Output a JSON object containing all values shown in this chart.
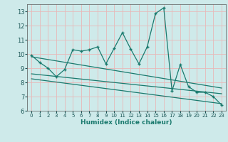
{
  "title": "",
  "xlabel": "Humidex (Indice chaleur)",
  "ylabel": "",
  "xlim": [
    -0.5,
    23.5
  ],
  "ylim": [
    6,
    13.5
  ],
  "yticks": [
    6,
    7,
    8,
    9,
    10,
    11,
    12,
    13
  ],
  "xticks": [
    0,
    1,
    2,
    3,
    4,
    5,
    6,
    7,
    8,
    9,
    10,
    11,
    12,
    13,
    14,
    15,
    16,
    17,
    18,
    19,
    20,
    21,
    22,
    23
  ],
  "line_color": "#1a7a6e",
  "bg_color": "#ceeaea",
  "grid_color": "#e8b8b8",
  "main_x": [
    0,
    1,
    2,
    3,
    4,
    5,
    6,
    7,
    8,
    9,
    10,
    11,
    12,
    13,
    14,
    15,
    16,
    17,
    18,
    19,
    20,
    21,
    22,
    23
  ],
  "main_y": [
    9.9,
    9.4,
    9.0,
    8.4,
    8.9,
    10.3,
    10.2,
    10.3,
    10.5,
    9.3,
    10.4,
    11.5,
    10.35,
    9.3,
    10.5,
    12.85,
    13.25,
    7.4,
    9.25,
    7.7,
    7.3,
    7.3,
    7.0,
    6.4
  ],
  "trend1_x": [
    0,
    23
  ],
  "trend1_y": [
    9.8,
    7.6
  ],
  "trend2_x": [
    0,
    23
  ],
  "trend2_y": [
    8.6,
    7.2
  ],
  "trend3_x": [
    0,
    23
  ],
  "trend3_y": [
    8.25,
    6.5
  ]
}
